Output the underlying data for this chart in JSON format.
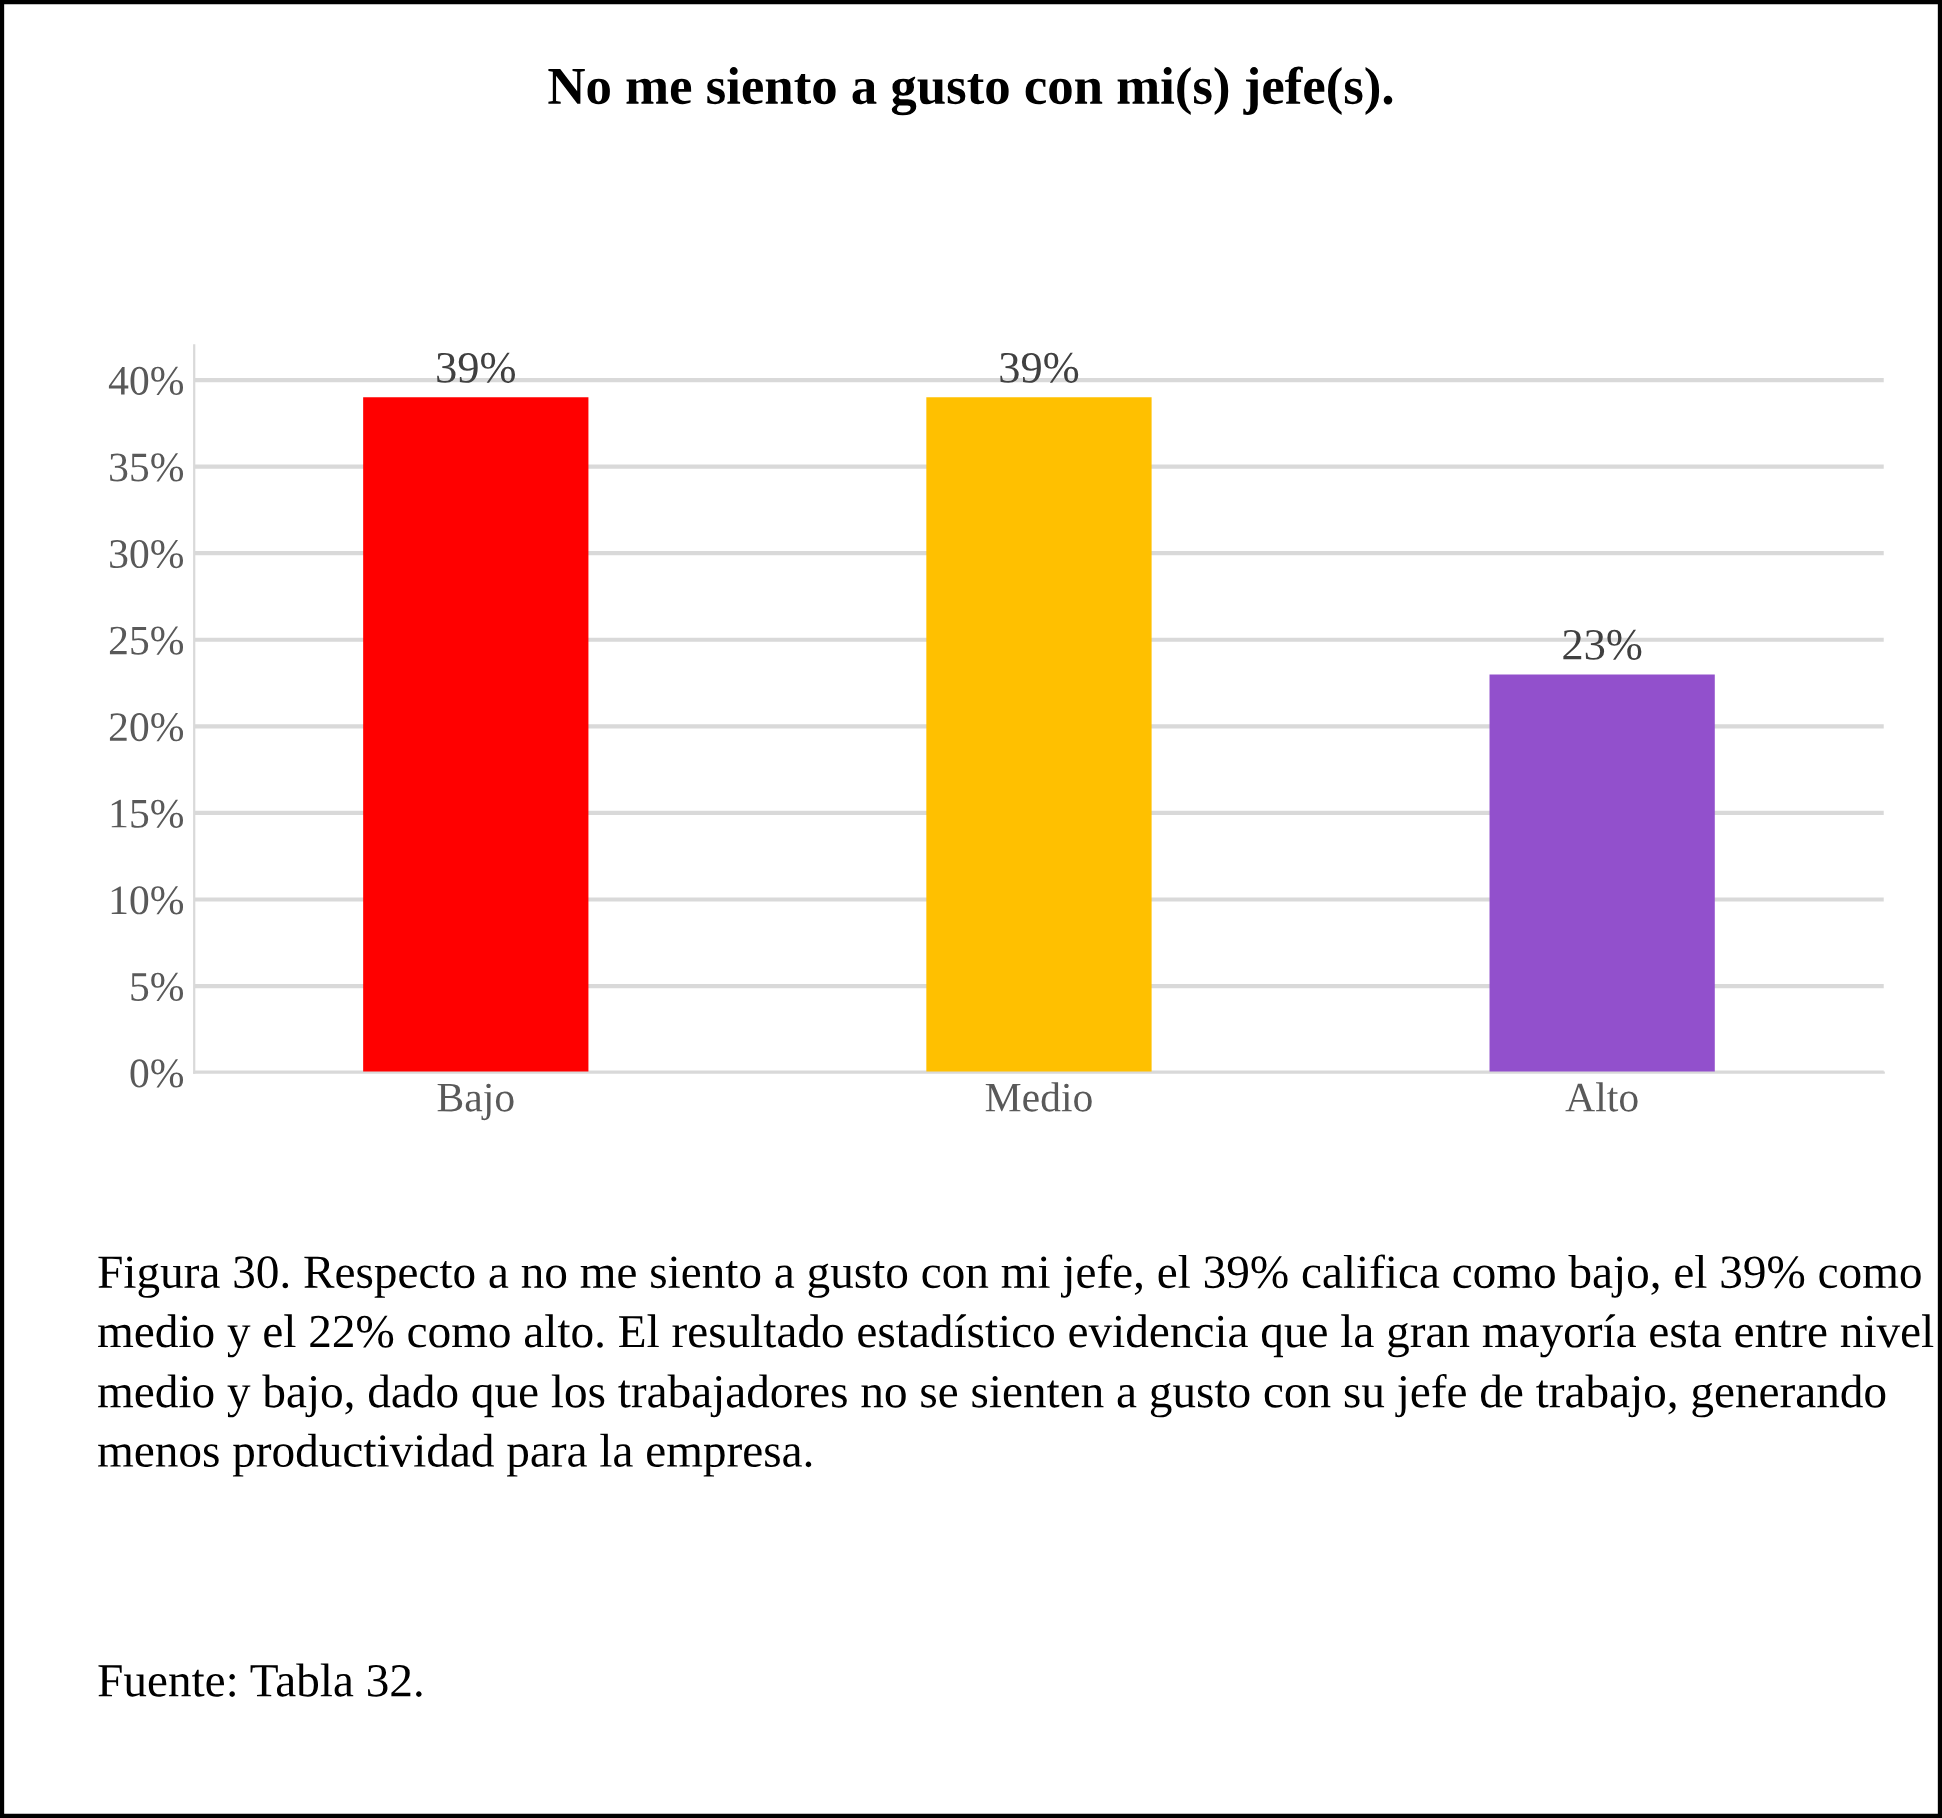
{
  "chart_data": {
    "type": "bar",
    "title": "No me siento a gusto con mi(s) jefe(s).",
    "categories": [
      "Bajo",
      "Medio",
      "Alto"
    ],
    "values": [
      39,
      39,
      23
    ],
    "colors": [
      "#ff0000",
      "#ffc000",
      "#9250cc"
    ],
    "value_labels": [
      "39%",
      "39%",
      "23%"
    ],
    "ylim": [
      0,
      42
    ],
    "yticks": [
      {
        "value": 0,
        "label": "0%"
      },
      {
        "value": 5,
        "label": "5%"
      },
      {
        "value": 10,
        "label": "10%"
      },
      {
        "value": 15,
        "label": "15%"
      },
      {
        "value": 20,
        "label": "20%"
      },
      {
        "value": 25,
        "label": "25%"
      },
      {
        "value": 30,
        "label": "30%"
      },
      {
        "value": 35,
        "label": "35%"
      },
      {
        "value": 40,
        "label": "40%"
      }
    ],
    "grid": "y",
    "annotations": [
      "Figura 30. Respecto a no me siento a gusto con mi jefe, el 39% califica como bajo, el 39% como medio y el 22% como alto. El resultado estadístico evidencia que la gran mayoría esta entre nivel medio y bajo, dado que los trabajadores no se sienten a gusto con su jefe de trabajo, generando menos productividad para la empresa.",
      "Fuente: Tabla 32."
    ]
  }
}
